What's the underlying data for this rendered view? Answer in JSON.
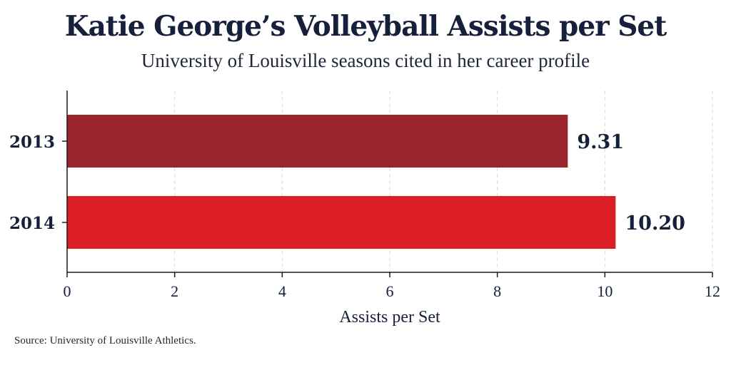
{
  "title": "Katie George’s Volleyball Assists per Set",
  "subtitle": "University of Louisville seasons cited in her career profile",
  "source": "Source: University of Louisville Athletics.",
  "colors": {
    "series": [
      "#9b252c",
      "#dc1f26"
    ],
    "text": "#16203a",
    "grid": "#d9d9d9",
    "axis": "#1a1a1a"
  },
  "chart_data": {
    "type": "bar",
    "orientation": "horizontal",
    "categories": [
      "2013",
      "2014"
    ],
    "values": [
      9.31,
      10.2
    ],
    "value_labels": [
      "9.31",
      "10.20"
    ],
    "title": "Katie George’s Volleyball Assists per Set",
    "subtitle": "University of Louisville seasons cited in her career profile",
    "xlabel": "Assists per Set",
    "ylabel": "",
    "xlim": [
      0,
      12
    ],
    "xticks": [
      "0",
      "2",
      "4",
      "6",
      "8",
      "10",
      "12"
    ],
    "grid": "vertical dashed",
    "legend": "none"
  }
}
